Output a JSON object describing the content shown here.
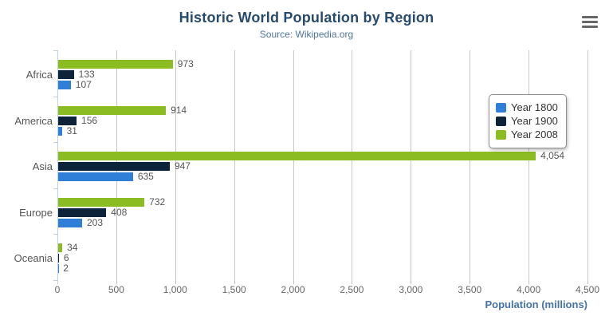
{
  "header": {
    "title": "Historic World Population by Region",
    "subtitle": "Source: Wikipedia.org"
  },
  "export_menu": {
    "icon": "hamburger-menu-icon"
  },
  "legend": {
    "items": [
      {
        "label": "Year 1800",
        "color": "#2f7ed8"
      },
      {
        "label": "Year 1900",
        "color": "#0d233a"
      },
      {
        "label": "Year 2008",
        "color": "#8bbc21"
      }
    ]
  },
  "chart_data": {
    "type": "bar",
    "orientation": "horizontal",
    "title": "Historic World Population by Region",
    "subtitle": "Source: Wikipedia.org",
    "categories": [
      "Africa",
      "America",
      "Asia",
      "Europe",
      "Oceania"
    ],
    "series": [
      {
        "name": "Year 1800",
        "color": "#2f7ed8",
        "values": [
          107,
          31,
          635,
          203,
          2
        ]
      },
      {
        "name": "Year 1900",
        "color": "#0d233a",
        "values": [
          133,
          156,
          947,
          408,
          6
        ]
      },
      {
        "name": "Year 2008",
        "color": "#8bbc21",
        "values": [
          973,
          914,
          4054,
          732,
          34
        ]
      }
    ],
    "bar_order_top_to_bottom": [
      "Year 2008",
      "Year 1900",
      "Year 1800"
    ],
    "data_labels": true,
    "xlabel": "Population (millions)",
    "xlim": [
      0,
      4500
    ],
    "xticks": [
      0,
      500,
      1000,
      1500,
      2000,
      2500,
      3000,
      3500,
      4000,
      4500
    ],
    "grid": true,
    "legend_position": "right"
  },
  "colors": {
    "title": "#274b6d",
    "subtitle": "#4d759e",
    "axis_title": "#4572a7",
    "tick_label": "#666666",
    "category_label": "#555555",
    "data_label": "#555555",
    "gridline": "#c8c8c8",
    "axis_line": "#c0d0e0",
    "legend_border": "#909090",
    "menu_icon": "#666666",
    "background": "#ffffff"
  }
}
